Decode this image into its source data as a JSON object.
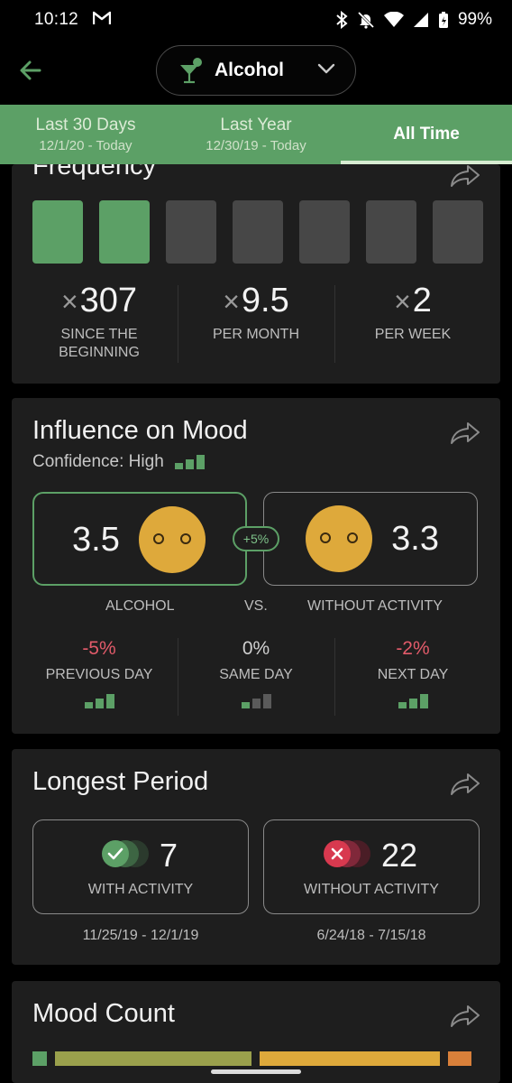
{
  "status_bar": {
    "time": "10:12",
    "mail_icon": "gmail-icon",
    "battery": "99%"
  },
  "header": {
    "activity_label": "Alcohol",
    "activity_icon": "cocktail-icon"
  },
  "tabs": [
    {
      "title": "Last 30 Days",
      "subtitle": "12/1/20 - Today",
      "active": false
    },
    {
      "title": "Last Year",
      "subtitle": "12/30/19 - Today",
      "active": false
    },
    {
      "title": "All Time",
      "subtitle": "",
      "active": true
    }
  ],
  "frequency": {
    "title": "Frequency",
    "squares_active": [
      true,
      true,
      false,
      false,
      false,
      false,
      false
    ],
    "stats": [
      {
        "value": "307",
        "label": "SINCE THE BEGINNING"
      },
      {
        "value": "9.5",
        "label": "PER MONTH"
      },
      {
        "value": "2",
        "label": "PER WEEK"
      }
    ]
  },
  "influence": {
    "title": "Influence on Mood",
    "confidence": "Confidence: High",
    "with_value": "3.5",
    "without_value": "3.3",
    "difference": "+5%",
    "with_label": "ALCOHOL",
    "vs_label": "VS.",
    "without_label": "WITHOUT ACTIVITY",
    "days": [
      {
        "pct": "-5%",
        "label": "PREVIOUS DAY",
        "negative": true
      },
      {
        "pct": "0%",
        "label": "SAME DAY",
        "negative": false
      },
      {
        "pct": "-2%",
        "label": "NEXT DAY",
        "negative": true
      }
    ]
  },
  "longest_period": {
    "title": "Longest Period",
    "with": {
      "value": "7",
      "label": "WITH ACTIVITY",
      "dates": "11/25/19 - 12/1/19"
    },
    "without": {
      "value": "22",
      "label": "WITHOUT ACTIVITY",
      "dates": "6/24/18 - 7/15/18"
    }
  },
  "mood_count": {
    "title": "Mood Count"
  },
  "colors": {
    "accent": "#5ca066",
    "mood_face": "#dea93b",
    "negative": "#e25b6a",
    "card": "#1e1e1e"
  }
}
